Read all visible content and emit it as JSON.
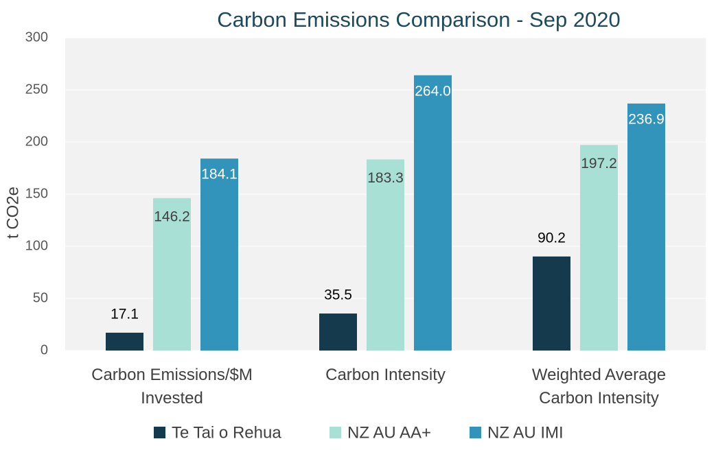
{
  "chart_data": {
    "type": "bar",
    "title": "Carbon Emissions Comparison - Sep 2020",
    "y_label": "t CO2e",
    "categories": [
      "Carbon Emissions/$M Invested",
      "Carbon Intensity",
      "Weighted Average Carbon Intensity"
    ],
    "series": [
      {
        "name": "Te Tai o Rehua",
        "color": "#163a4d",
        "values": [
          17.1,
          35.5,
          90.2
        ]
      },
      {
        "name": "NZ AU AA+",
        "color": "#a8e0d6",
        "values": [
          146.2,
          183.3,
          197.2
        ]
      },
      {
        "name": "NZ AU IMI",
        "color": "#3394bb",
        "values": [
          184.1,
          264.0,
          236.9
        ],
        "value_labels": [
          "184.1",
          "264.0",
          "236.9"
        ]
      }
    ],
    "ylim": [
      0,
      300
    ],
    "yticks": [
      0,
      50,
      100,
      150,
      200,
      250,
      300
    ],
    "grid": true,
    "legend": "bottom"
  }
}
